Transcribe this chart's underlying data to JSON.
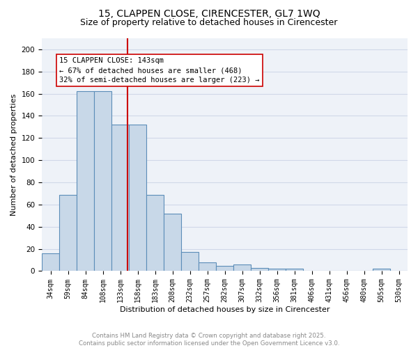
{
  "title_line1": "15, CLAPPEN CLOSE, CIRENCESTER, GL7 1WQ",
  "title_line2": "Size of property relative to detached houses in Cirencester",
  "xlabel": "Distribution of detached houses by size in Cirencester",
  "ylabel": "Number of detached properties",
  "bar_color": "#c8d8e8",
  "bar_edge_color": "#5b8db8",
  "bin_labels": [
    "34sqm",
    "59sqm",
    "84sqm",
    "108sqm",
    "133sqm",
    "158sqm",
    "183sqm",
    "208sqm",
    "232sqm",
    "257sqm",
    "282sqm",
    "307sqm",
    "332sqm",
    "356sqm",
    "381sqm",
    "406sqm",
    "431sqm",
    "456sqm",
    "480sqm",
    "505sqm",
    "530sqm"
  ],
  "bar_heights": [
    16,
    69,
    162,
    162,
    132,
    132,
    69,
    52,
    17,
    8,
    5,
    6,
    3,
    2,
    2,
    0,
    0,
    0,
    0,
    2,
    0
  ],
  "vline_color": "#cc0000",
  "annotation_text": "15 CLAPPEN CLOSE: 143sqm\n← 67% of detached houses are smaller (468)\n32% of semi-detached houses are larger (223) →",
  "annotation_box_color": "#ffffff",
  "annotation_box_edge_color": "#cc0000",
  "ylim": [
    0,
    210
  ],
  "yticks": [
    0,
    20,
    40,
    60,
    80,
    100,
    120,
    140,
    160,
    180,
    200
  ],
  "grid_color": "#d0d8e8",
  "background_color": "#eef2f8",
  "footer_text": "Contains HM Land Registry data © Crown copyright and database right 2025.\nContains public sector information licensed under the Open Government Licence v3.0.",
  "footer_color": "#888888",
  "title_fontsize": 10,
  "subtitle_fontsize": 9,
  "axis_label_fontsize": 8,
  "tick_fontsize": 7,
  "annotation_fontsize": 7.5,
  "vline_x": 4.4
}
